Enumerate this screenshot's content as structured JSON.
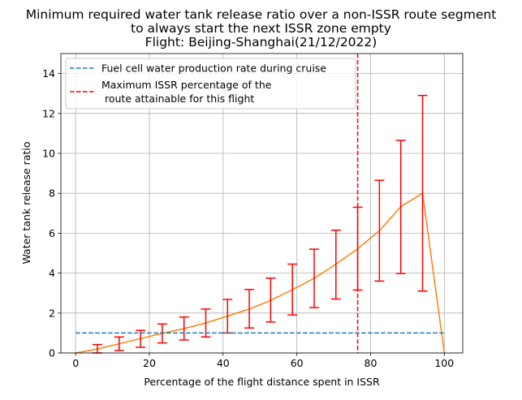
{
  "chart_data": {
    "type": "line",
    "title_lines": [
      "Minimum required water tank release ratio over a non-ISSR route segment",
      "to always start the next ISSR zone empty",
      "Flight: Beijing-Shanghai(21/12/2022)"
    ],
    "xlabel": "Percentage of the flight distance spent in ISSR",
    "ylabel": "Water tank release ratio",
    "xlim": [
      -4,
      105
    ],
    "ylim": [
      0,
      15
    ],
    "xticks": [
      0,
      20,
      40,
      60,
      80,
      100
    ],
    "yticks": [
      0,
      2,
      4,
      6,
      8,
      10,
      12,
      14
    ],
    "grid": true,
    "legend_position": "upper-left",
    "series": [
      {
        "kind": "line",
        "color": "#ff7f0e",
        "x": [
          0,
          5.9,
          11.8,
          17.6,
          23.5,
          29.4,
          35.3,
          41.2,
          47.1,
          52.9,
          58.8,
          64.7,
          70.6,
          76.5,
          82.4,
          88.2,
          94.1,
          100
        ],
        "y": [
          0,
          0.2,
          0.46,
          0.72,
          0.98,
          1.22,
          1.5,
          1.85,
          2.2,
          2.63,
          3.17,
          3.74,
          4.45,
          5.22,
          6.12,
          7.33,
          8.0,
          0
        ]
      },
      {
        "kind": "errorbar",
        "color": "#ff0000",
        "x": [
          5.9,
          11.8,
          17.6,
          23.5,
          29.4,
          35.3,
          41.2,
          47.1,
          52.9,
          58.8,
          64.7,
          70.6,
          76.5,
          82.4,
          88.2,
          94.1
        ],
        "y": [
          0.2,
          0.46,
          0.72,
          0.98,
          1.22,
          1.5,
          1.85,
          2.2,
          2.63,
          3.17,
          3.74,
          4.45,
          5.22,
          6.12,
          7.33,
          8.0
        ],
        "lower": [
          0,
          0.12,
          0.28,
          0.5,
          0.65,
          0.8,
          1.0,
          1.25,
          1.55,
          1.9,
          2.27,
          2.7,
          3.15,
          3.6,
          3.98,
          3.1
        ],
        "upper": [
          0.42,
          0.8,
          1.13,
          1.45,
          1.8,
          2.2,
          2.68,
          3.18,
          3.75,
          4.45,
          5.2,
          6.15,
          7.3,
          8.65,
          10.65,
          12.9
        ]
      },
      {
        "kind": "hline",
        "name": "Fuel cell water production rate during cruise",
        "color": "#1f77b4",
        "y": 1.0,
        "x_range": [
          0,
          100
        ]
      },
      {
        "kind": "vline",
        "name_lines": [
          "Maximum ISSR percentage of the",
          " route attainable for this flight"
        ],
        "color": "#ff0000",
        "x": 76.5
      }
    ]
  }
}
